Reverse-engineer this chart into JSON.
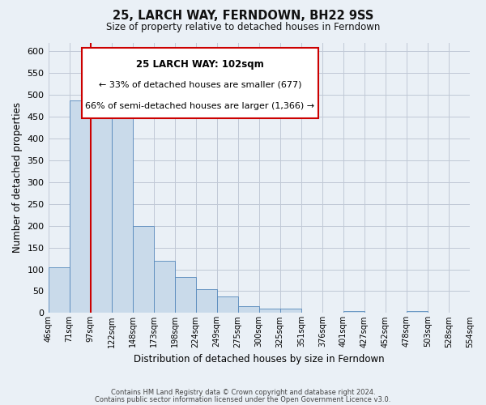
{
  "title": "25, LARCH WAY, FERNDOWN, BH22 9SS",
  "subtitle": "Size of property relative to detached houses in Ferndown",
  "xlabel": "Distribution of detached houses by size in Ferndown",
  "ylabel": "Number of detached properties",
  "bar_values": [
    105,
    487,
    487,
    452,
    200,
    120,
    82,
    55,
    38,
    15,
    10,
    10,
    0,
    0,
    5,
    0,
    0,
    5,
    0,
    0
  ],
  "tick_labels": [
    "46sqm",
    "71sqm",
    "97sqm",
    "122sqm",
    "148sqm",
    "173sqm",
    "198sqm",
    "224sqm",
    "249sqm",
    "275sqm",
    "300sqm",
    "325sqm",
    "351sqm",
    "376sqm",
    "401sqm",
    "427sqm",
    "452sqm",
    "478sqm",
    "503sqm",
    "528sqm",
    "554sqm"
  ],
  "bar_color": "#c9daea",
  "bar_edge_color": "#5588bb",
  "vline_x": 2,
  "vline_color": "#cc0000",
  "ylim": [
    0,
    620
  ],
  "yticks": [
    0,
    50,
    100,
    150,
    200,
    250,
    300,
    350,
    400,
    450,
    500,
    550,
    600
  ],
  "annotation_title": "25 LARCH WAY: 102sqm",
  "annotation_line1": "← 33% of detached houses are smaller (677)",
  "annotation_line2": "66% of semi-detached houses are larger (1,366) →",
  "annotation_box_color": "#ffffff",
  "annotation_box_edge": "#cc0000",
  "footer_line1": "Contains HM Land Registry data © Crown copyright and database right 2024.",
  "footer_line2": "Contains public sector information licensed under the Open Government Licence v3.0.",
  "bg_color": "#eaf0f6",
  "plot_bg_color": "#eaf0f6",
  "grid_color": "#c0c8d5"
}
